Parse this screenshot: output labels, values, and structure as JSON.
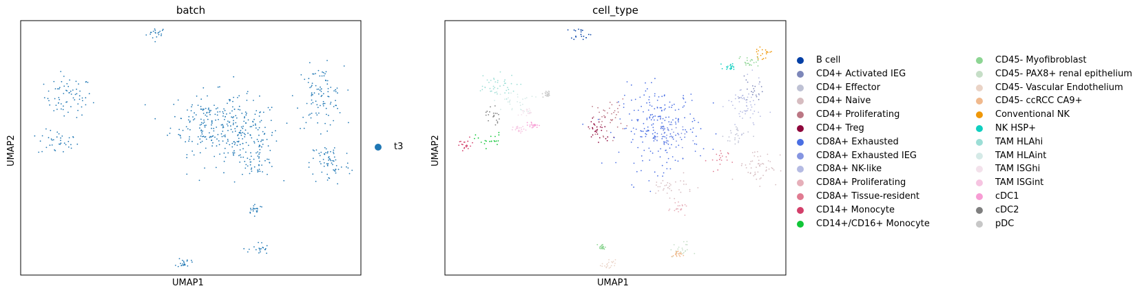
{
  "chart_data": [
    {
      "type": "scatter",
      "title": "batch",
      "xlabel": "UMAP1",
      "ylabel": "UMAP2",
      "grid": false,
      "ticks": false,
      "legend_placement": "right",
      "series": [
        {
          "name": "t3",
          "color": "#1f77b4"
        }
      ],
      "clusters": [
        {
          "series": "t3",
          "x": 0.4,
          "y": 0.95,
          "rx": 0.03,
          "ry": 0.025
        },
        {
          "series": "t3",
          "x": 0.14,
          "y": 0.7,
          "rx": 0.07,
          "ry": 0.08
        },
        {
          "series": "t3",
          "x": 0.11,
          "y": 0.52,
          "rx": 0.06,
          "ry": 0.05
        },
        {
          "series": "t3",
          "x": 0.54,
          "y": 0.6,
          "rx": 0.1,
          "ry": 0.12
        },
        {
          "series": "t3",
          "x": 0.65,
          "y": 0.55,
          "rx": 0.11,
          "ry": 0.14
        },
        {
          "series": "t3",
          "x": 0.7,
          "y": 0.45,
          "rx": 0.05,
          "ry": 0.06
        },
        {
          "series": "t3",
          "x": 0.88,
          "y": 0.7,
          "rx": 0.07,
          "ry": 0.12
        },
        {
          "series": "t3",
          "x": 0.91,
          "y": 0.44,
          "rx": 0.06,
          "ry": 0.09
        },
        {
          "series": "t3",
          "x": 0.69,
          "y": 0.26,
          "rx": 0.025,
          "ry": 0.02
        },
        {
          "series": "t3",
          "x": 0.7,
          "y": 0.1,
          "rx": 0.03,
          "ry": 0.03
        },
        {
          "series": "t3",
          "x": 0.48,
          "y": 0.05,
          "rx": 0.02,
          "ry": 0.02
        }
      ]
    },
    {
      "type": "scatter",
      "title": "cell_type",
      "xlabel": "UMAP1",
      "ylabel": "UMAP2",
      "grid": false,
      "ticks": false,
      "legend_placement": "right",
      "series": [
        {
          "name": "B cell",
          "color": "#023fa5"
        },
        {
          "name": "CD4+ Activated IEG",
          "color": "#7d87b9"
        },
        {
          "name": "CD4+ Effector",
          "color": "#bec1d4"
        },
        {
          "name": "CD4+ Naive",
          "color": "#d6bcc0"
        },
        {
          "name": "CD4+ Proliferating",
          "color": "#bb7784"
        },
        {
          "name": "CD4+ Treg",
          "color": "#8e063b"
        },
        {
          "name": "CD8A+ Exhausted",
          "color": "#4a6fe3"
        },
        {
          "name": "CD8A+ Exhausted IEG",
          "color": "#8595e1"
        },
        {
          "name": "CD8A+ NK-like",
          "color": "#b5bbe3"
        },
        {
          "name": "CD8A+ Proliferating",
          "color": "#e6afb9"
        },
        {
          "name": "CD8A+ Tissue-resident",
          "color": "#e07b91"
        },
        {
          "name": "CD14+ Monocyte",
          "color": "#d33f6a"
        },
        {
          "name": "CD14+/CD16+ Monocyte",
          "color": "#11c638"
        },
        {
          "name": "CD45- Myofibroblast",
          "color": "#8dd593"
        },
        {
          "name": "CD45- PAX8+ renal epithelium",
          "color": "#c6dec7"
        },
        {
          "name": "CD45- Vascular Endothelium",
          "color": "#ead3c6"
        },
        {
          "name": "CD45- ccRCC CA9+",
          "color": "#f0b98d"
        },
        {
          "name": "Conventional NK",
          "color": "#ef9708"
        },
        {
          "name": "NK HSP+",
          "color": "#0fcfc0"
        },
        {
          "name": "TAM HLAhi",
          "color": "#9cded6"
        },
        {
          "name": "TAM HLAint",
          "color": "#d5eae7"
        },
        {
          "name": "TAM ISGhi",
          "color": "#f3e1eb"
        },
        {
          "name": "TAM ISGint",
          "color": "#f6c4e1"
        },
        {
          "name": "cDC1",
          "color": "#f79cd4"
        },
        {
          "name": "cDC2",
          "color": "#7f7f7f"
        },
        {
          "name": "pDC",
          "color": "#c7c7c7"
        }
      ],
      "clusters": [
        {
          "series": "B cell",
          "x": 0.4,
          "y": 0.95,
          "rx": 0.03,
          "ry": 0.025
        },
        {
          "series": "TAM HLAhi",
          "x": 0.14,
          "y": 0.74,
          "rx": 0.07,
          "ry": 0.05
        },
        {
          "series": "TAM HLAint",
          "x": 0.2,
          "y": 0.68,
          "rx": 0.06,
          "ry": 0.04
        },
        {
          "series": "cDC2",
          "x": 0.14,
          "y": 0.63,
          "rx": 0.02,
          "ry": 0.05
        },
        {
          "series": "CD14+/CD16+ Monocyte",
          "x": 0.13,
          "y": 0.53,
          "rx": 0.04,
          "ry": 0.03
        },
        {
          "series": "CD14+ Monocyte",
          "x": 0.06,
          "y": 0.51,
          "rx": 0.03,
          "ry": 0.03
        },
        {
          "series": "TAM ISGint",
          "x": 0.22,
          "y": 0.57,
          "rx": 0.02,
          "ry": 0.015
        },
        {
          "series": "CD4+ Treg",
          "x": 0.45,
          "y": 0.57,
          "rx": 0.04,
          "ry": 0.06
        },
        {
          "series": "CD4+ Proliferating",
          "x": 0.48,
          "y": 0.62,
          "rx": 0.05,
          "ry": 0.07
        },
        {
          "series": "CD8A+ Exhausted",
          "x": 0.63,
          "y": 0.58,
          "rx": 0.12,
          "ry": 0.16
        },
        {
          "series": "CD8A+ Exhausted IEG",
          "x": 0.66,
          "y": 0.55,
          "rx": 0.05,
          "ry": 0.06
        },
        {
          "series": "CD4+ Naive",
          "x": 0.66,
          "y": 0.35,
          "rx": 0.07,
          "ry": 0.04
        },
        {
          "series": "CD8A+ Proliferating",
          "x": 0.69,
          "y": 0.26,
          "rx": 0.025,
          "ry": 0.02
        },
        {
          "series": "CD8A+ NK-like",
          "x": 0.88,
          "y": 0.66,
          "rx": 0.05,
          "ry": 0.1
        },
        {
          "series": "CD4+ Effector",
          "x": 0.86,
          "y": 0.55,
          "rx": 0.04,
          "ry": 0.05
        },
        {
          "series": "CD4+ Activated IEG",
          "x": 0.9,
          "y": 0.72,
          "rx": 0.03,
          "ry": 0.05
        },
        {
          "series": "Conventional NK",
          "x": 0.93,
          "y": 0.87,
          "rx": 0.025,
          "ry": 0.02
        },
        {
          "series": "NK HSP+",
          "x": 0.84,
          "y": 0.82,
          "rx": 0.02,
          "ry": 0.015
        },
        {
          "series": "CD45- Myofibroblast",
          "x": 0.89,
          "y": 0.84,
          "rx": 0.03,
          "ry": 0.02
        },
        {
          "series": "CD4+ Naive",
          "x": 0.92,
          "y": 0.43,
          "rx": 0.06,
          "ry": 0.07
        },
        {
          "series": "CD8A+ Tissue-resident",
          "x": 0.8,
          "y": 0.45,
          "rx": 0.03,
          "ry": 0.05
        },
        {
          "series": "CD45- PAX8+ renal epithelium",
          "x": 0.69,
          "y": 0.1,
          "rx": 0.03,
          "ry": 0.03
        },
        {
          "series": "CD45- ccRCC CA9+",
          "x": 0.68,
          "y": 0.08,
          "rx": 0.015,
          "ry": 0.015
        },
        {
          "series": "CD45- Vascular Endothelium",
          "x": 0.48,
          "y": 0.04,
          "rx": 0.02,
          "ry": 0.02
        },
        {
          "series": "CD45- Myofibroblast",
          "x": 0.46,
          "y": 0.11,
          "rx": 0.01,
          "ry": 0.012
        },
        {
          "series": "pDC",
          "x": 0.3,
          "y": 0.71,
          "rx": 0.015,
          "ry": 0.015
        },
        {
          "series": "cDC1",
          "x": 0.26,
          "y": 0.59,
          "rx": 0.015,
          "ry": 0.01
        },
        {
          "series": "TAM ISGhi",
          "x": 0.24,
          "y": 0.64,
          "rx": 0.015,
          "ry": 0.015
        }
      ]
    }
  ]
}
